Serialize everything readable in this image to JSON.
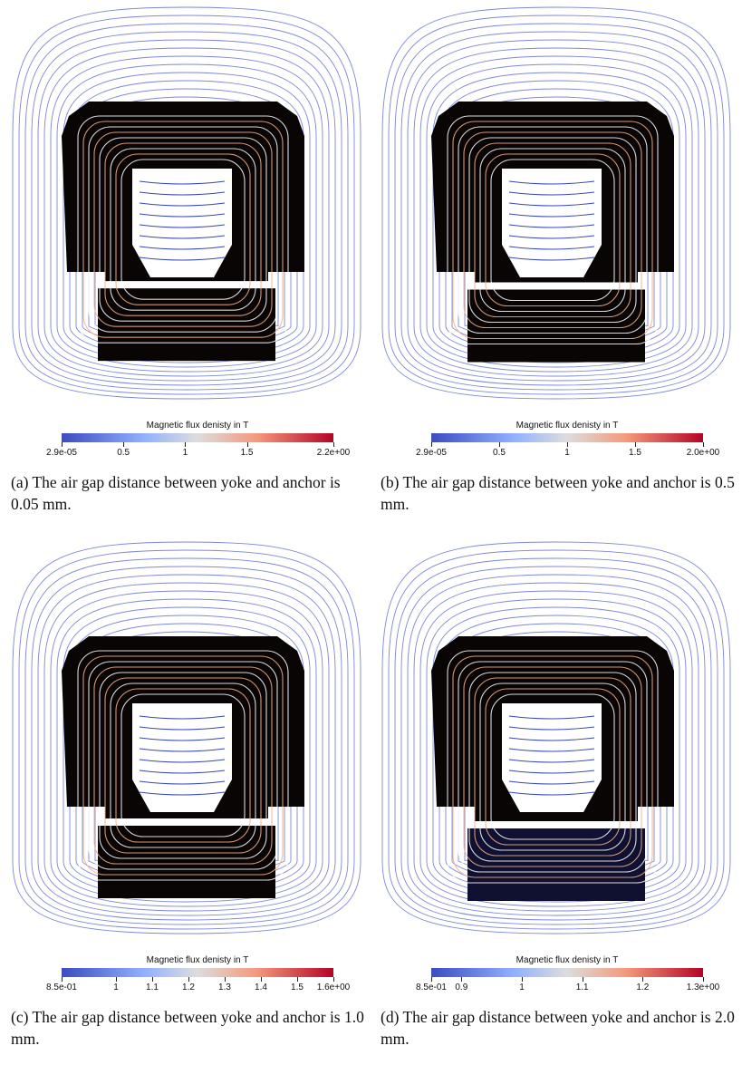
{
  "panels": [
    {
      "id": "a",
      "caption": "(a) The air gap distance between yoke and anchor is 0.05 mm.",
      "colorbar": {
        "title": "Magnetic flux denisty in T",
        "min": 2.9e-05,
        "max": 2.2,
        "ticks": [
          {
            "label": "2.9e-05",
            "value": 2.9e-05
          },
          {
            "label": "0.5",
            "value": 0.5
          },
          {
            "label": "1",
            "value": 1
          },
          {
            "label": "1.5",
            "value": 1.5
          },
          {
            "label": "2.2e+00",
            "value": 2.2
          }
        ]
      },
      "gap_mm": 0.05,
      "anchor_style": "dark"
    },
    {
      "id": "b",
      "caption": "(b) The air gap distance between yoke and anchor is 0.5 mm.",
      "colorbar": {
        "title": "Magnetic flux denisty in T",
        "min": 2.9e-05,
        "max": 2.0,
        "ticks": [
          {
            "label": "2.9e-05",
            "value": 2.9e-05
          },
          {
            "label": "0.5",
            "value": 0.5
          },
          {
            "label": "1",
            "value": 1
          },
          {
            "label": "1.5",
            "value": 1.5
          },
          {
            "label": "2.0e+00",
            "value": 2.0
          }
        ]
      },
      "gap_mm": 0.5,
      "anchor_style": "dark"
    },
    {
      "id": "c",
      "caption": "(c) The air gap distance between yoke and anchor is 1.0 mm.",
      "colorbar": {
        "title": "Magnetic flux denisty in T",
        "min": 0.85,
        "max": 1.6,
        "ticks": [
          {
            "label": "8.5e-01",
            "value": 0.85
          },
          {
            "label": "1",
            "value": 1.0
          },
          {
            "label": "1.1",
            "value": 1.1
          },
          {
            "label": "1.2",
            "value": 1.2
          },
          {
            "label": "1.3",
            "value": 1.3
          },
          {
            "label": "1.4",
            "value": 1.4
          },
          {
            "label": "1.5",
            "value": 1.5
          },
          {
            "label": "1.6e+00",
            "value": 1.6
          }
        ]
      },
      "gap_mm": 1.0,
      "anchor_style": "light"
    },
    {
      "id": "d",
      "caption": "(d) The air gap distance between yoke and anchor is 2.0 mm.",
      "colorbar": {
        "title": "Magnetic flux denisty in T",
        "min": 0.85,
        "max": 1.3,
        "ticks": [
          {
            "label": "8.5e-01",
            "value": 0.85
          },
          {
            "label": "0.9",
            "value": 0.9
          },
          {
            "label": "1",
            "value": 1.0
          },
          {
            "label": "1.1",
            "value": 1.1
          },
          {
            "label": "1.2",
            "value": 1.2
          },
          {
            "label": "1.3e+00",
            "value": 1.3
          }
        ]
      },
      "gap_mm": 2.0,
      "anchor_style": "blue"
    }
  ],
  "colors": {
    "low": "#3b4cc0",
    "mid": "#dddddd",
    "high": "#b40426",
    "core": "#0a0505",
    "field_line": "#5060c8"
  }
}
